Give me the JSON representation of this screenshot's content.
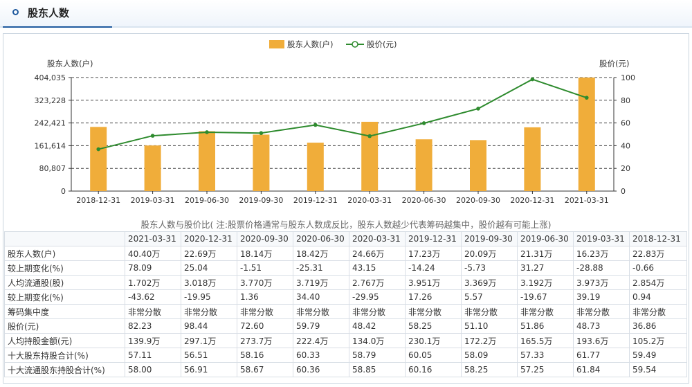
{
  "header": {
    "title": "股东人数"
  },
  "legend": {
    "bar_label": "股东人数(户)",
    "line_label": "股价(元)"
  },
  "axes": {
    "left_title": "股东人数(户)",
    "right_title": "股价(元)"
  },
  "caption": "股东人数与股价比( 注:股票价格通常与股东人数成反比，股东人数越少代表筹码越集中，股价越有可能上涨)",
  "colors": {
    "bar": "#f0ad3a",
    "line": "#2e8b2e",
    "accent": "#1f5a9e"
  },
  "chart_data": {
    "type": "bar",
    "categories": [
      "2018-12-31",
      "2019-03-31",
      "2019-06-30",
      "2019-09-30",
      "2019-12-31",
      "2020-03-31",
      "2020-06-30",
      "2020-09-30",
      "2020-12-31",
      "2021-03-31"
    ],
    "series": [
      {
        "name": "股东人数(户)",
        "type": "bar",
        "axis": "left",
        "values": [
          228300,
          162300,
          213100,
          200900,
          172300,
          246600,
          184200,
          181400,
          226900,
          404035
        ]
      },
      {
        "name": "股价(元)",
        "type": "line",
        "axis": "right",
        "values": [
          36.86,
          48.73,
          51.86,
          51.1,
          58.25,
          48.42,
          59.79,
          72.6,
          98.44,
          82.23
        ]
      }
    ],
    "y_left_ticks": [
      "0",
      "80,807",
      "161,614",
      "242,421",
      "323,228",
      "404,035"
    ],
    "y_right_ticks": [
      "0",
      "20",
      "40",
      "60",
      "80",
      "100"
    ],
    "ylim_left": [
      0,
      404035
    ],
    "ylim_right": [
      0,
      100
    ],
    "grid": "dashed horizontal",
    "legend_position": "top-center"
  },
  "table": {
    "headers": [
      "",
      "2021-03-31",
      "2020-12-31",
      "2020-09-30",
      "2020-06-30",
      "2020-03-31",
      "2019-12-31",
      "2019-09-30",
      "2019-06-30",
      "2019-03-31",
      "2018-12-31"
    ],
    "rows": [
      [
        "股东人数(户)",
        "40.40万",
        "22.69万",
        "18.14万",
        "18.42万",
        "24.66万",
        "17.23万",
        "20.09万",
        "21.31万",
        "16.23万",
        "22.83万"
      ],
      [
        "较上期变化(%)",
        "78.09",
        "25.04",
        "-1.51",
        "-25.31",
        "43.15",
        "-14.24",
        "-5.73",
        "31.27",
        "-28.88",
        "-0.66"
      ],
      [
        "人均流通股(股)",
        "1.702万",
        "3.018万",
        "3.770万",
        "3.719万",
        "2.767万",
        "3.951万",
        "3.369万",
        "3.192万",
        "3.973万",
        "2.854万"
      ],
      [
        "较上期变化(%)",
        "-43.62",
        "-19.95",
        "1.36",
        "34.40",
        "-29.95",
        "17.26",
        "5.57",
        "-19.67",
        "39.19",
        "0.94"
      ],
      [
        "筹码集中度",
        "非常分散",
        "非常分散",
        "非常分散",
        "非常分散",
        "非常分散",
        "非常分散",
        "非常分散",
        "非常分散",
        "非常分散",
        "非常分散"
      ],
      [
        "股价(元)",
        "82.23",
        "98.44",
        "72.60",
        "59.79",
        "48.42",
        "58.25",
        "51.10",
        "51.86",
        "48.73",
        "36.86"
      ],
      [
        "人均持股金额(元)",
        "139.9万",
        "297.1万",
        "273.7万",
        "222.4万",
        "134.0万",
        "230.1万",
        "172.2万",
        "165.5万",
        "193.6万",
        "105.2万"
      ],
      [
        "十大股东持股合计(%)",
        "57.11",
        "56.51",
        "58.16",
        "60.33",
        "58.79",
        "60.05",
        "58.09",
        "57.33",
        "61.77",
        "59.49"
      ],
      [
        "十大流通股东持股合计(%)",
        "58.00",
        "56.91",
        "58.67",
        "60.36",
        "58.85",
        "60.16",
        "58.25",
        "57.25",
        "61.84",
        "59.54"
      ]
    ]
  }
}
